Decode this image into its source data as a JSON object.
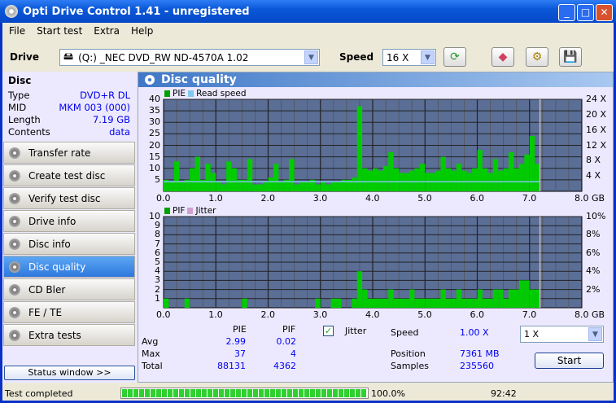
{
  "window": {
    "title": "Opti Drive Control 1.41 - unregistered",
    "min": "_",
    "max": "□",
    "close": "✕"
  },
  "menu": [
    "File",
    "Start test",
    "Extra",
    "Help"
  ],
  "toolbar": {
    "drive_label": "Drive",
    "drive_value": "(Q:)   _NEC DVD_RW ND-4570A 1.02",
    "speed_label": "Speed",
    "speed_value": "16 X"
  },
  "disc": {
    "header": "Disc",
    "rows": [
      {
        "k": "Type",
        "v": "DVD+R DL"
      },
      {
        "k": "MID",
        "v": "MKM 003 (000)"
      },
      {
        "k": "Length",
        "v": "7.19 GB"
      },
      {
        "k": "Contents",
        "v": "data"
      }
    ]
  },
  "nav": [
    "Transfer rate",
    "Create test disc",
    "Verify test disc",
    "Drive info",
    "Disc info",
    "Disc quality",
    "CD Bler",
    "FE / TE",
    "Extra tests"
  ],
  "nav_active": "Disc quality",
  "status_window": "Status window >>",
  "panel_title": "Disc quality",
  "chart_data": [
    {
      "type": "bar",
      "legend": [
        "PIE",
        "Read speed"
      ],
      "colors": {
        "PIE": "#00cc00",
        "Read speed": "#80c8f0"
      },
      "x_ticks": [
        "0.0",
        "1.0",
        "2.0",
        "3.0",
        "4.0",
        "5.0",
        "6.0",
        "7.0",
        "8.0 GB"
      ],
      "xlim": [
        0,
        8
      ],
      "y_ticks": [
        "5",
        "10",
        "15",
        "20",
        "25",
        "30",
        "35",
        "40"
      ],
      "ylim": [
        0,
        40
      ],
      "y2_ticks": [
        "4 X",
        "8 X",
        "12 X",
        "16 X",
        "20 X",
        "24 X"
      ],
      "y2lim": [
        0,
        24
      ],
      "x_step": 0.1,
      "values": [
        5,
        4,
        13,
        4,
        5,
        10,
        15,
        5,
        12,
        8,
        4,
        3,
        13,
        10,
        5,
        5,
        14,
        3,
        3,
        4,
        6,
        12,
        4,
        5,
        14,
        3,
        4,
        4,
        5,
        3,
        4,
        3,
        4,
        4,
        5,
        5,
        6,
        37,
        10,
        9,
        10,
        9,
        11,
        17,
        10,
        8,
        8,
        9,
        10,
        12,
        8,
        8,
        9,
        15,
        10,
        9,
        12,
        9,
        8,
        10,
        18,
        10,
        8,
        14,
        9,
        10,
        17,
        10,
        12,
        16,
        24,
        12
      ],
      "read_speed_x": 1.0
    },
    {
      "type": "bar",
      "legend": [
        "PIF",
        "Jitter"
      ],
      "colors": {
        "PIF": "#00cc00",
        "Jitter": "#d0a0d0"
      },
      "x_ticks": [
        "0.0",
        "1.0",
        "2.0",
        "3.0",
        "4.0",
        "5.0",
        "6.0",
        "7.0",
        "8.0 GB"
      ],
      "xlim": [
        0,
        8
      ],
      "y_ticks": [
        "1",
        "2",
        "3",
        "4",
        "5",
        "6",
        "7",
        "8",
        "9",
        "10"
      ],
      "ylim": [
        0,
        10
      ],
      "y2_ticks": [
        "2%",
        "4%",
        "6%",
        "8%",
        "10%"
      ],
      "y2lim": [
        0,
        10
      ],
      "x_step": 0.1,
      "values": [
        1,
        0,
        0,
        0,
        1,
        0,
        0,
        0,
        0,
        0,
        0,
        0,
        0,
        0,
        0,
        1,
        0,
        0,
        0,
        0,
        0,
        0,
        0,
        0,
        0,
        0,
        0,
        0,
        0,
        1,
        0,
        0,
        1,
        1,
        0,
        0,
        1,
        4,
        2,
        1,
        1,
        1,
        1,
        2,
        1,
        1,
        1,
        2,
        1,
        1,
        1,
        1,
        1,
        2,
        1,
        1,
        2,
        1,
        1,
        1,
        2,
        1,
        1,
        2,
        2,
        1,
        2,
        2,
        3,
        3,
        2,
        2
      ]
    }
  ],
  "stats": {
    "col_pie": "PIE",
    "col_pif": "PIF",
    "rows": [
      {
        "k": "Avg",
        "pie": "2.99",
        "pif": "0.02"
      },
      {
        "k": "Max",
        "pie": "37",
        "pif": "4"
      },
      {
        "k": "Total",
        "pie": "88131",
        "pif": "4362"
      }
    ],
    "jitter_label": "Jitter",
    "jitter_checked": true,
    "speed_label": "Speed",
    "speed": "1.00 X",
    "position_label": "Position",
    "position": "7361 MB",
    "samples_label": "Samples",
    "samples": "235560",
    "speed_select": "1 X",
    "start": "Start"
  },
  "statusbar": {
    "text": "Test completed",
    "progress": 100,
    "progress_text": "100.0%",
    "time": "92:42"
  }
}
